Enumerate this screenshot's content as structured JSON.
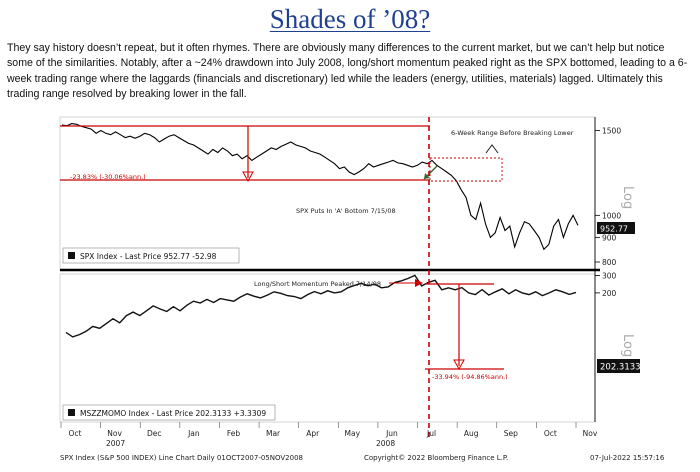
{
  "title": "Shades of ’08?",
  "body": "They say history doesn’t repeat, but it often rhymes. There are obviously many differences to the current market, but we can’t help but notice some of the similarities. Notably, after a ~24% drawdown into July 2008, long/short momentum peaked right as the SPX bottomed, leading to a 6-week trading range where the laggards (financials and discretionary) led while the leaders (energy, utilities, materials) lagged. Ultimately this trading range resolved by breaking lower in the fall.",
  "footer": {
    "left": "SPX Index (S&P 500 INDEX) Line Chart  Daily 01OCT2007-05NOV2008",
    "center": "Copyright© 2022 Bloomberg Finance L.P.",
    "right": "07-Jul-2022 15:57:16"
  },
  "colors": {
    "title": "#1f3f8f",
    "line": "#000000",
    "annotation": "#cc0000",
    "arrow_green": "#2f6b2f"
  },
  "chart_data": [
    {
      "type": "line",
      "series": [
        {
          "name": "SPX Index - Last Price",
          "values": [
            1540,
            1535,
            1550,
            1545,
            1530,
            1520,
            1510,
            1480,
            1500,
            1480,
            1470,
            1490,
            1470,
            1450,
            1460,
            1445,
            1460,
            1480,
            1470,
            1450,
            1420,
            1440,
            1460,
            1470,
            1450,
            1430,
            1410,
            1400,
            1380,
            1360,
            1340,
            1370,
            1350,
            1380,
            1360,
            1330,
            1340,
            1310,
            1330,
            1300,
            1320,
            1340,
            1360,
            1380,
            1370,
            1390,
            1405,
            1420,
            1400,
            1390,
            1380,
            1360,
            1350,
            1340,
            1320,
            1300,
            1280,
            1250,
            1260,
            1230,
            1215,
            1230,
            1250,
            1280,
            1260,
            1270,
            1280,
            1290,
            1300,
            1285,
            1280,
            1270,
            1260,
            1270,
            1290,
            1280,
            1300,
            1270,
            1250,
            1230,
            1210,
            1180,
            1130,
            1090,
            1000,
            980,
            1060,
            960,
            900,
            920,
            990,
            930,
            950,
            860,
            920,
            970,
            960,
            930,
            900,
            850,
            870,
            950,
            980,
            900,
            960,
            1000,
            952.77
          ]
        }
      ],
      "x_labels": [
        "Oct",
        "Nov",
        "Dec",
        "Jan",
        "Feb",
        "Mar",
        "Apr",
        "May",
        "Jun",
        "Jul",
        "Aug",
        "Sep",
        "Oct",
        "Nov"
      ],
      "x_year_labels": [
        "2007",
        "2008"
      ],
      "ylim": [
        770,
        1600
      ],
      "y_ticks": [
        1500,
        1000,
        900,
        800
      ],
      "y_scale": "log",
      "ylabel": "Log",
      "last_value_tag": "952.77",
      "legend": {
        "label": "SPX Index - Last Price 952.77  -52.98",
        "position": "bottom-left"
      },
      "annotations": {
        "drawdown_label": "-23.83% (-30.06%ann.)",
        "range_label": "6-Week Range Before Breaking Lower",
        "bottom_label": "SPX Puts In 'A' Bottom 7/15/08"
      }
    },
    {
      "type": "line",
      "series": [
        {
          "name": "MSZZMOMO Index - Last Price",
          "values": [
            80,
            72,
            76,
            82,
            92,
            88,
            98,
            110,
            100,
            118,
            128,
            118,
            132,
            148,
            138,
            130,
            145,
            132,
            150,
            165,
            158,
            172,
            160,
            175,
            170,
            165,
            182,
            196,
            185,
            178,
            190,
            205,
            198,
            188,
            184,
            175,
            192,
            206,
            196,
            210,
            200,
            205,
            225,
            238,
            250,
            236,
            245,
            225,
            230,
            255,
            265,
            280,
            300,
            235,
            255,
            268,
            215,
            225,
            215,
            226,
            200,
            192,
            216,
            190,
            205,
            220,
            196,
            215,
            200,
            192,
            205,
            188,
            200,
            215,
            205,
            193,
            202.3133
          ]
        }
      ],
      "ylim": [
        10,
        310
      ],
      "y_ticks": [
        300,
        200
      ],
      "y_scale": "log",
      "ylabel": "Log",
      "last_value_tag": "202.3133",
      "legend": {
        "label": "MSZZMOMO Index - Last Price 202.3133  +3.3309",
        "position": "bottom-left"
      },
      "annotations": {
        "peak_label": "Long/Short Momentum Peaked 7/14/08",
        "drawdown_label": "-33.94% (-94.86%ann.)"
      }
    }
  ]
}
